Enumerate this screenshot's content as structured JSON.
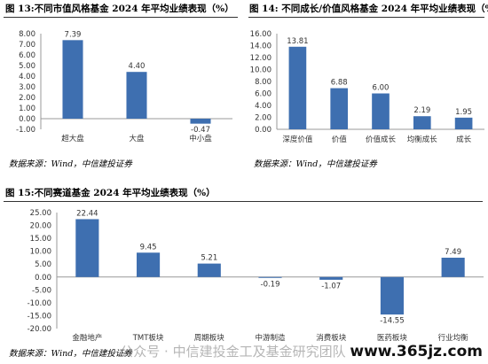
{
  "charts": {
    "c1": {
      "caption": "图 13:不同市值风格基金 2024 年平均业绩表现（%）",
      "source": "数据来源：Wind，中信建投证券",
      "bar_color": "#3e6fb0"
    },
    "c2": {
      "caption": "图 14:  不同成长/价值风格基金 2024 年平均业绩表现（%）",
      "source": "数据来源：Wind，中信建投证券",
      "bar_color": "#3e6fb0"
    },
    "c3": {
      "caption": "图 15:不同赛道基金 2024 年平均业绩表现（%）",
      "source": "数据来源：Wind，中信建投证券",
      "bar_color": "#3e6fb0"
    }
  },
  "watermark": {
    "text": "公众号 · 中信建投金工及基金研究团队",
    "site": "www.365jz.com"
  },
  "chart_data": [
    {
      "type": "bar",
      "categories": [
        "超大盘",
        "大盘",
        "中小盘"
      ],
      "values": [
        7.39,
        4.4,
        -0.47
      ],
      "value_labels": [
        "7.39",
        "4.40",
        "-0.47"
      ],
      "ylim": [
        -1.0,
        8.0
      ],
      "yticks": [
        "-1.00",
        "0.00",
        "1.00",
        "2.00",
        "3.00",
        "4.00",
        "5.00",
        "6.00",
        "7.00",
        "8.00"
      ],
      "grid": false
    },
    {
      "type": "bar",
      "categories": [
        "深度价值",
        "价值",
        "价值成长",
        "均衡成长",
        "成长"
      ],
      "values": [
        13.81,
        6.88,
        6.0,
        2.19,
        1.95
      ],
      "value_labels": [
        "13.81",
        "6.88",
        "6.00",
        "2.19",
        "1.95"
      ],
      "ylim": [
        0.0,
        16.0
      ],
      "yticks": [
        "0.00",
        "2.00",
        "4.00",
        "6.00",
        "8.00",
        "10.00",
        "12.00",
        "14.00",
        "16.00"
      ],
      "grid": false
    },
    {
      "type": "bar",
      "categories": [
        "金融地产",
        "TMT板块",
        "周期板块",
        "中游制造",
        "消费板块",
        "医药板块",
        "行业均衡"
      ],
      "values": [
        22.44,
        9.45,
        5.21,
        -0.19,
        -1.07,
        -14.55,
        7.49
      ],
      "value_labels": [
        "22.44",
        "9.45",
        "5.21",
        "-0.19",
        "-1.07",
        "-14.55",
        "7.49"
      ],
      "ylim": [
        -20.0,
        25.0
      ],
      "yticks": [
        "-20.00",
        "-15.00",
        "-10.00",
        "-5.00",
        "0.00",
        "5.00",
        "10.00",
        "15.00",
        "20.00",
        "25.00"
      ],
      "grid": false
    }
  ]
}
